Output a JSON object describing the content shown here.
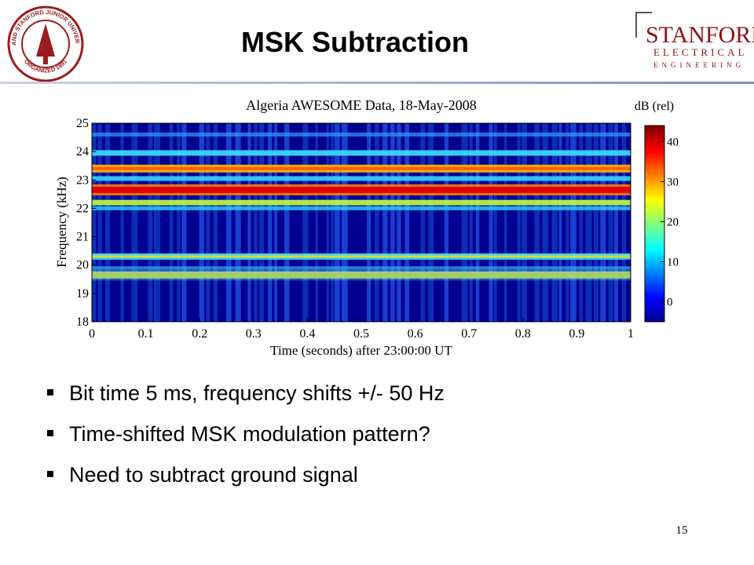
{
  "header": {
    "title": "MSK Subtraction"
  },
  "logos": {
    "seal": [
      "LELAND STANFORD JUNIOR UNIVERSITY",
      "ORGANIZED 1891"
    ],
    "department": [
      "STANFORD",
      "ELECTRICAL",
      "ENGINEERING"
    ]
  },
  "figure": {
    "title": "Algeria AWESOME Data, 18-May-2008",
    "xlabel": "Time (seconds) after 23:00:00 UT",
    "ylabel": "Frequency (kHz)",
    "xlim": [
      0,
      1
    ],
    "xticks": [
      0,
      0.1,
      0.2,
      0.3,
      0.4,
      0.5,
      0.6,
      0.7,
      0.8,
      0.9,
      1
    ],
    "ylim": [
      18,
      25
    ],
    "yticks": [
      18,
      19,
      20,
      21,
      22,
      23,
      24,
      25
    ],
    "colorbar": {
      "label": "dB (rel)",
      "lim": [
        -5,
        44
      ],
      "ticks": [
        0,
        10,
        20,
        30,
        40
      ]
    }
  },
  "bullets": [
    "Bit time 5 ms, frequency shifts +/- 50 Hz",
    "Time-shifted MSK modulation pattern?",
    "Need to subtract ground signal"
  ],
  "page_number": "15"
}
